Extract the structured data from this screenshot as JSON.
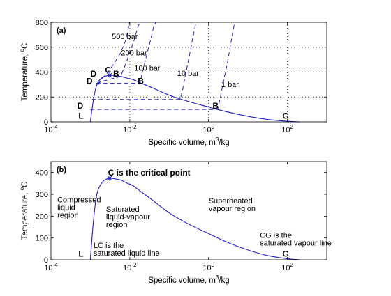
{
  "chart_data": [
    {
      "type": "line",
      "panel_label": "(a)",
      "xscale": "log",
      "xlim": [
        0.0001,
        1000
      ],
      "ylim": [
        0,
        800
      ],
      "xticks": [
        0.0001,
        0.01,
        1,
        100
      ],
      "xtick_labels": [
        {
          "base": "10",
          "exp": "-4"
        },
        {
          "base": "10",
          "exp": "-2"
        },
        {
          "base": "10",
          "exp": "0"
        },
        {
          "base": "10",
          "exp": "2"
        }
      ],
      "yticks": [
        0,
        200,
        400,
        600,
        800
      ],
      "ytick_labels": [
        "0",
        "200",
        "400",
        "600",
        "800"
      ],
      "xlabel": {
        "text": "Specific volume, m",
        "sup": "3",
        "tail": "/kg"
      },
      "ylabel": {
        "text": "Temperature, ",
        "sup": "o",
        "tail": "C"
      },
      "grid": true,
      "dome": {
        "x": [
          0.001,
          0.0011,
          0.0012,
          0.0013,
          0.0014,
          0.0015,
          0.0017,
          0.002,
          0.0023,
          0.0028,
          0.0031,
          0.0035,
          0.0045,
          0.006,
          0.0088,
          0.012,
          0.02,
          0.04,
          0.1,
          0.3,
          1,
          3,
          10,
          30,
          100,
          206
        ],
        "y": [
          0,
          100,
          180,
          240,
          280,
          310,
          335,
          355,
          365,
          372,
          374,
          373,
          370,
          365,
          350,
          340,
          310,
          270,
          215,
          165,
          120,
          80,
          45,
          20,
          5,
          0
        ]
      },
      "isobars": [
        {
          "label": "500 bar",
          "x": [
            0.0016,
            0.002,
            0.0028,
            0.004,
            0.006,
            0.008,
            0.0098
          ],
          "y": [
            300,
            350,
            400,
            470,
            560,
            660,
            800
          ]
        },
        {
          "label": "200 bar",
          "x": [
            0.0015,
            0.0017,
            0.0058,
            0.0065,
            0.008,
            0.01,
            0.013,
            0.016,
            0.018
          ],
          "y": [
            300,
            320,
            364,
            400,
            470,
            560,
            660,
            760,
            800
          ]
        },
        {
          "label": "100 bar",
          "x": [
            0.0014,
            0.0018,
            0.018,
            0.02,
            0.023,
            0.028,
            0.034,
            0.04,
            0.046
          ],
          "y": [
            310,
            310,
            310,
            370,
            450,
            560,
            660,
            760,
            800
          ]
        },
        {
          "label": "10 bar",
          "x": [
            0.0011,
            0.19,
            0.22,
            0.26,
            0.32,
            0.4,
            0.48
          ],
          "y": [
            180,
            180,
            260,
            380,
            520,
            680,
            800
          ]
        },
        {
          "label": "1 bar",
          "x": [
            0.001,
            1.7,
            2.0,
            2.4,
            3.0,
            3.7,
            4.6
          ],
          "y": [
            100,
            100,
            200,
            330,
            470,
            640,
            800
          ]
        }
      ],
      "critical_point": {
        "x": 0.0031,
        "y": 374
      },
      "point_labels": [
        {
          "text": "C",
          "x": 0.0028,
          "y": 395
        },
        {
          "text": "D",
          "x": 0.0012,
          "y": 365
        },
        {
          "text": "B",
          "x": 0.0045,
          "y": 365
        },
        {
          "text": "D",
          "x": 0.00095,
          "y": 305
        },
        {
          "text": "B",
          "x": 0.019,
          "y": 305
        },
        {
          "text": "D",
          "x": 0.00055,
          "y": 105
        },
        {
          "text": "B",
          "x": 1.5,
          "y": 105
        },
        {
          "text": "L",
          "x": 0.00058,
          "y": 25
        },
        {
          "text": "G",
          "x": 90,
          "y": 25
        }
      ],
      "annotations": [
        {
          "text": "500 bar",
          "x": 0.0035,
          "y": 665
        },
        {
          "text": "200 bar",
          "x": 0.006,
          "y": 535
        },
        {
          "text": "100 bar",
          "x": 0.013,
          "y": 410
        },
        {
          "text": "10 bar",
          "x": 0.16,
          "y": 370
        },
        {
          "text": "1 bar",
          "x": 2.1,
          "y": 280
        }
      ]
    },
    {
      "type": "line",
      "panel_label": "(b)",
      "xscale": "log",
      "xlim": [
        0.0001,
        1000
      ],
      "ylim": [
        0,
        450
      ],
      "xticks": [
        0.0001,
        0.01,
        1,
        100
      ],
      "xtick_labels": [
        {
          "base": "10",
          "exp": "-4"
        },
        {
          "base": "10",
          "exp": "-2"
        },
        {
          "base": "10",
          "exp": "0"
        },
        {
          "base": "10",
          "exp": "2"
        }
      ],
      "yticks": [
        0,
        100,
        200,
        300,
        400
      ],
      "ytick_labels": [
        "0",
        "100",
        "200",
        "300",
        "400"
      ],
      "xlabel": {
        "text": "Specific volume, m",
        "sup": "3",
        "tail": "/kg"
      },
      "ylabel": {
        "text": "Temperature, ",
        "sup": "o",
        "tail": "C"
      },
      "grid": false,
      "dome": {
        "x": [
          0.001,
          0.0011,
          0.0012,
          0.0013,
          0.0014,
          0.0015,
          0.0017,
          0.002,
          0.0023,
          0.0028,
          0.0031,
          0.0035,
          0.0045,
          0.006,
          0.0088,
          0.012,
          0.02,
          0.04,
          0.1,
          0.3,
          1,
          3,
          10,
          30,
          100,
          206
        ],
        "y": [
          0,
          100,
          180,
          240,
          280,
          310,
          335,
          355,
          365,
          372,
          374,
          373,
          370,
          365,
          350,
          340,
          310,
          270,
          215,
          165,
          120,
          80,
          45,
          20,
          5,
          0
        ]
      },
      "critical_point": {
        "x": 0.0031,
        "y": 374
      },
      "point_labels": [
        {
          "text": "L",
          "x": 0.00058,
          "y": 14
        },
        {
          "text": "G",
          "x": 90,
          "y": 14
        }
      ],
      "annotations": [
        {
          "lines": [
            "C is the critical point"
          ],
          "x": 0.0028,
          "y": 386,
          "bold": true
        },
        {
          "lines": [
            "Compressed",
            "liquid",
            "region"
          ],
          "x": 0.000145,
          "y": 263
        },
        {
          "lines": [
            "Saturated",
            "liquid-vapour",
            "region"
          ],
          "x": 0.0025,
          "y": 220
        },
        {
          "lines": [
            "Superheated",
            "vapour region"
          ],
          "x": 1.0,
          "y": 258
        },
        {
          "lines": [
            "LC is the",
            "saturated liquid line"
          ],
          "x": 0.0012,
          "y": 55
        },
        {
          "lines": [
            "CG is the",
            "saturated vapour line"
          ],
          "x": 20,
          "y": 100
        }
      ]
    }
  ]
}
